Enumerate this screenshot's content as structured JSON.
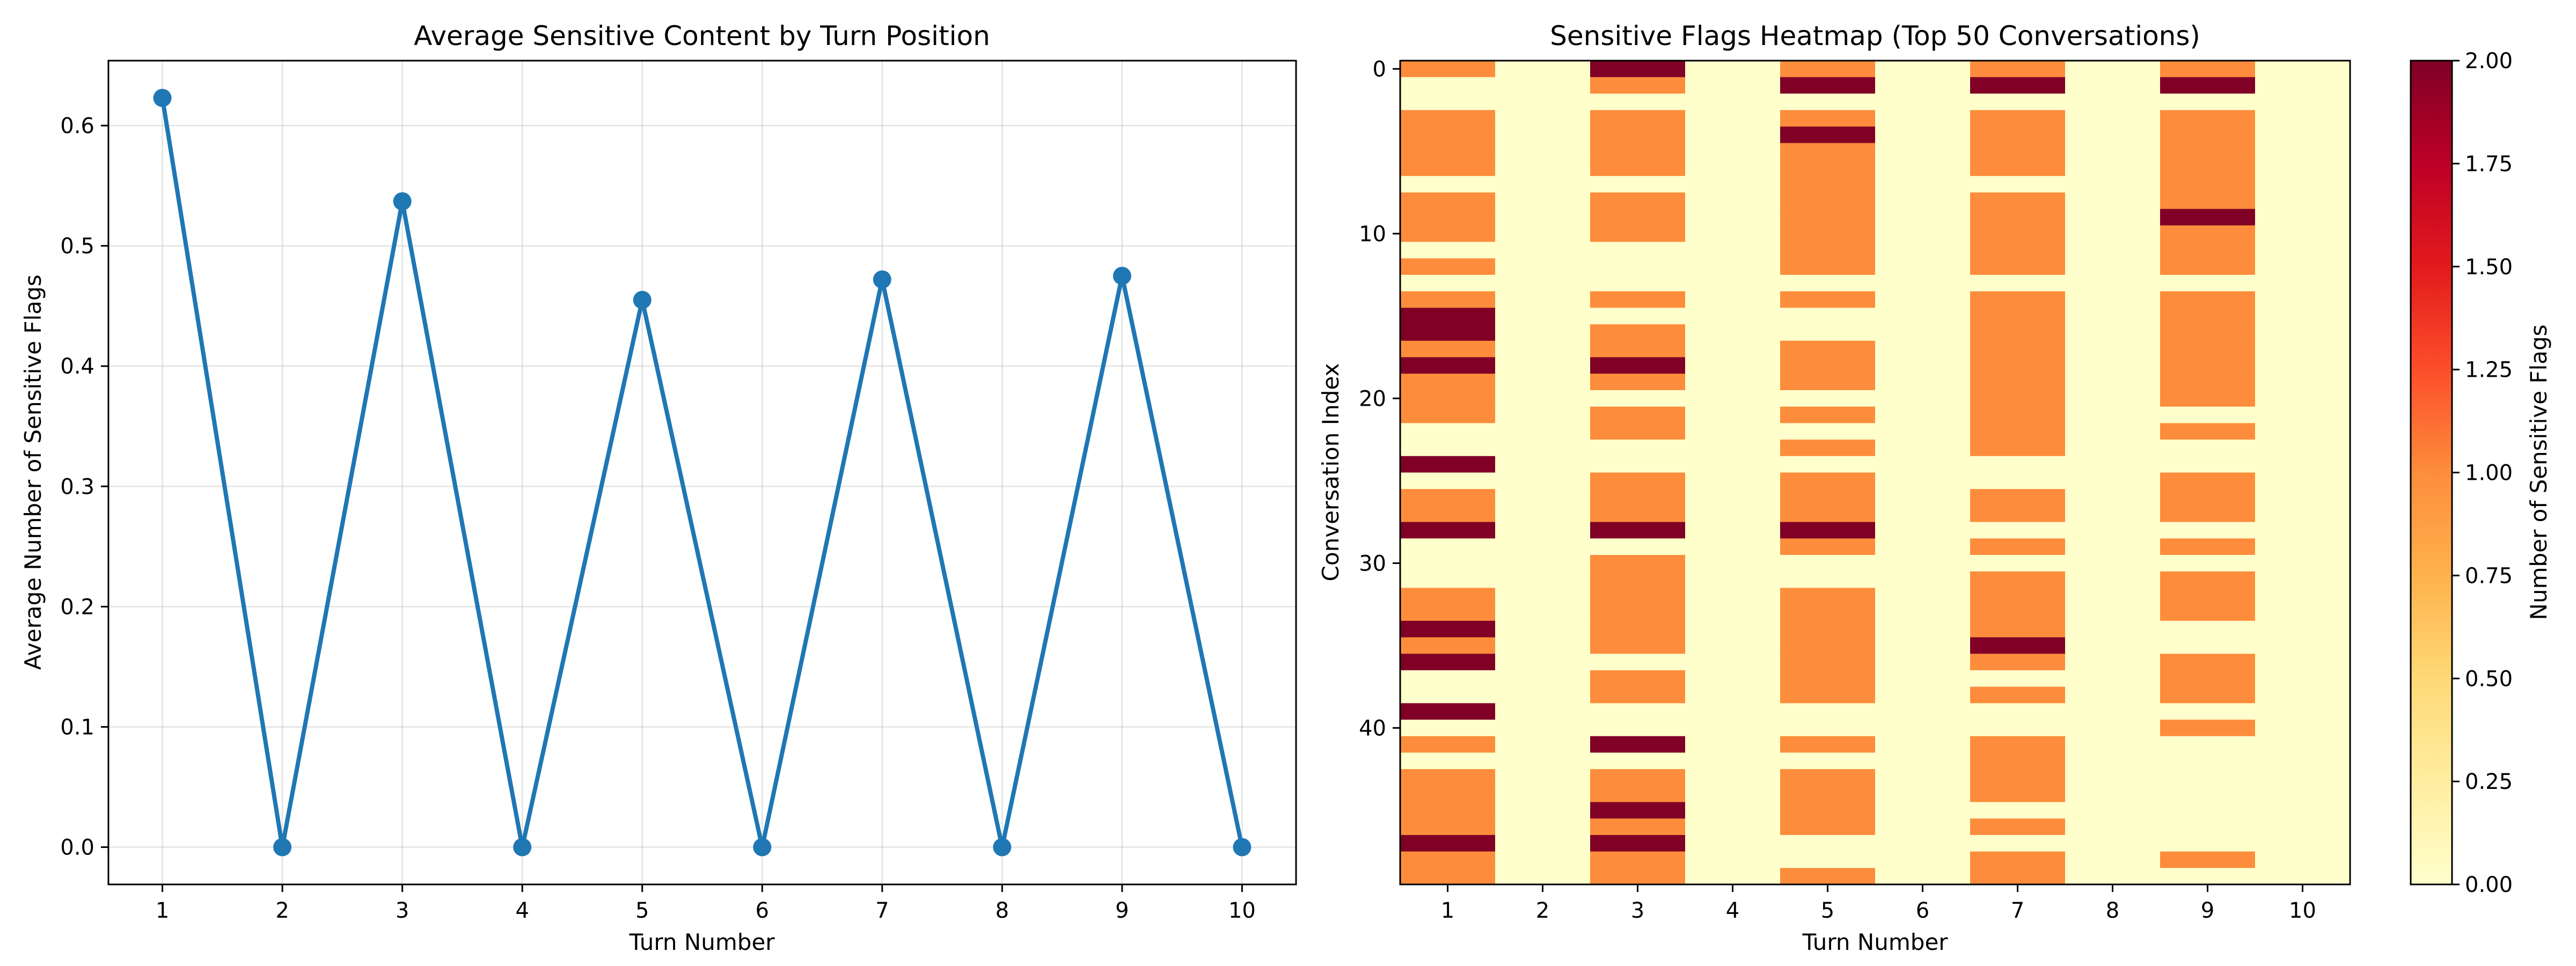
{
  "chart_data": [
    {
      "type": "line",
      "title": "Average Sensitive Content by Turn Position",
      "xlabel": "Turn Number",
      "ylabel": "Average Number of Sensitive Flags",
      "x": [
        1,
        2,
        3,
        4,
        5,
        6,
        7,
        8,
        9,
        10
      ],
      "y": [
        0.623,
        0.0,
        0.537,
        0.0,
        0.455,
        0.0,
        0.472,
        0.0,
        0.475,
        0.0
      ],
      "xlim": [
        0.55,
        10.45
      ],
      "ylim": [
        -0.031,
        0.654
      ],
      "xticks": [
        1,
        2,
        3,
        4,
        5,
        6,
        7,
        8,
        9,
        10
      ],
      "yticks": [
        "0.0",
        "0.1",
        "0.2",
        "0.3",
        "0.4",
        "0.5",
        "0.6"
      ],
      "color": "#1f77b4",
      "grid": true,
      "marker": "circle"
    },
    {
      "type": "heatmap",
      "title": "Sensitive Flags Heatmap (Top 50 Conversations)",
      "xlabel": "Turn Number",
      "ylabel": "Conversation Index",
      "x_categories": [
        1,
        2,
        3,
        4,
        5,
        6,
        7,
        8,
        9,
        10
      ],
      "yticks": [
        0,
        10,
        20,
        30,
        40
      ],
      "colorbar": {
        "label": "Number of Sensitive Flags",
        "range": [
          0,
          2
        ],
        "ticks": [
          "0.00",
          "0.25",
          "0.50",
          "0.75",
          "1.00",
          "1.25",
          "1.50",
          "1.75",
          "2.00"
        ],
        "colormap": "YlOrRd",
        "stops": [
          "#ffffcc",
          "#ffeda0",
          "#fed976",
          "#feb24c",
          "#fd8d3c",
          "#fc4e2a",
          "#e31a1c",
          "#bd0026",
          "#800026"
        ]
      },
      "rows": [
        [
          1,
          0,
          2,
          0,
          1,
          0,
          1,
          0,
          1,
          0
        ],
        [
          0,
          0,
          1,
          0,
          2,
          0,
          2,
          0,
          2,
          0
        ],
        [
          0,
          0,
          0,
          0,
          0,
          0,
          0,
          0,
          0,
          0
        ],
        [
          1,
          0,
          1,
          0,
          1,
          0,
          1,
          0,
          1,
          0
        ],
        [
          1,
          0,
          1,
          0,
          2,
          0,
          1,
          0,
          1,
          0
        ],
        [
          1,
          0,
          1,
          0,
          1,
          0,
          1,
          0,
          1,
          0
        ],
        [
          1,
          0,
          1,
          0,
          1,
          0,
          1,
          0,
          1,
          0
        ],
        [
          0,
          0,
          0,
          0,
          1,
          0,
          0,
          0,
          1,
          0
        ],
        [
          1,
          0,
          1,
          0,
          1,
          0,
          1,
          0,
          1,
          0
        ],
        [
          1,
          0,
          1,
          0,
          1,
          0,
          1,
          0,
          2,
          0
        ],
        [
          1,
          0,
          1,
          0,
          1,
          0,
          1,
          0,
          1,
          0
        ],
        [
          0,
          0,
          0,
          0,
          1,
          0,
          1,
          0,
          1,
          0
        ],
        [
          1,
          0,
          0,
          0,
          1,
          0,
          1,
          0,
          1,
          0
        ],
        [
          0,
          0,
          0,
          0,
          0,
          0,
          0,
          0,
          0,
          0
        ],
        [
          1,
          0,
          1,
          0,
          1,
          0,
          1,
          0,
          1,
          0
        ],
        [
          2,
          0,
          0,
          0,
          0,
          0,
          1,
          0,
          1,
          0
        ],
        [
          2,
          0,
          1,
          0,
          0,
          0,
          1,
          0,
          1,
          0
        ],
        [
          1,
          0,
          1,
          0,
          1,
          0,
          1,
          0,
          1,
          0
        ],
        [
          2,
          0,
          2,
          0,
          1,
          0,
          1,
          0,
          1,
          0
        ],
        [
          1,
          0,
          1,
          0,
          1,
          0,
          1,
          0,
          1,
          0
        ],
        [
          1,
          0,
          0,
          0,
          0,
          0,
          1,
          0,
          1,
          0
        ],
        [
          1,
          0,
          1,
          0,
          1,
          0,
          1,
          0,
          0,
          0
        ],
        [
          0,
          0,
          1,
          0,
          0,
          0,
          1,
          0,
          1,
          0
        ],
        [
          0,
          0,
          0,
          0,
          1,
          0,
          1,
          0,
          0,
          0
        ],
        [
          2,
          0,
          0,
          0,
          0,
          0,
          0,
          0,
          0,
          0
        ],
        [
          0,
          0,
          1,
          0,
          1,
          0,
          0,
          0,
          1,
          0
        ],
        [
          1,
          0,
          1,
          0,
          1,
          0,
          1,
          0,
          1,
          0
        ],
        [
          1,
          0,
          1,
          0,
          1,
          0,
          1,
          0,
          1,
          0
        ],
        [
          2,
          0,
          2,
          0,
          2,
          0,
          0,
          0,
          0,
          0
        ],
        [
          0,
          0,
          0,
          0,
          1,
          0,
          1,
          0,
          1,
          0
        ],
        [
          0,
          0,
          1,
          0,
          0,
          0,
          0,
          0,
          0,
          0
        ],
        [
          0,
          0,
          1,
          0,
          0,
          0,
          1,
          0,
          1,
          0
        ],
        [
          1,
          0,
          1,
          0,
          1,
          0,
          1,
          0,
          1,
          0
        ],
        [
          1,
          0,
          1,
          0,
          1,
          0,
          1,
          0,
          1,
          0
        ],
        [
          2,
          0,
          1,
          0,
          1,
          0,
          1,
          0,
          0,
          0
        ],
        [
          1,
          0,
          1,
          0,
          1,
          0,
          2,
          0,
          0,
          0
        ],
        [
          2,
          0,
          0,
          0,
          1,
          0,
          1,
          0,
          1,
          0
        ],
        [
          0,
          0,
          1,
          0,
          1,
          0,
          0,
          0,
          1,
          0
        ],
        [
          0,
          0,
          1,
          0,
          1,
          0,
          1,
          0,
          1,
          0
        ],
        [
          2,
          0,
          0,
          0,
          0,
          0,
          0,
          0,
          0,
          0
        ],
        [
          0,
          0,
          0,
          0,
          0,
          0,
          0,
          0,
          1,
          0
        ],
        [
          1,
          0,
          2,
          0,
          1,
          0,
          1,
          0,
          0,
          0
        ],
        [
          0,
          0,
          0,
          0,
          0,
          0,
          1,
          0,
          0,
          0
        ],
        [
          1,
          0,
          1,
          0,
          1,
          0,
          1,
          0,
          0,
          0
        ],
        [
          1,
          0,
          1,
          0,
          1,
          0,
          1,
          0,
          0,
          0
        ],
        [
          1,
          0,
          2,
          0,
          1,
          0,
          0,
          0,
          0,
          0
        ],
        [
          1,
          0,
          1,
          0,
          1,
          0,
          1,
          0,
          0,
          0
        ],
        [
          2,
          0,
          2,
          0,
          0,
          0,
          0,
          0,
          0,
          0
        ],
        [
          1,
          0,
          1,
          0,
          0,
          0,
          1,
          0,
          1,
          0
        ],
        [
          1,
          0,
          1,
          0,
          1,
          0,
          1,
          0,
          0,
          0
        ]
      ]
    }
  ]
}
